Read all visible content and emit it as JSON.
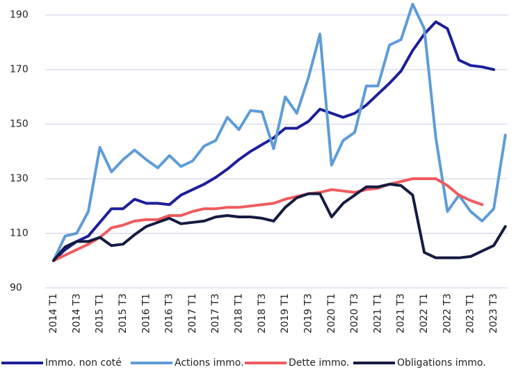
{
  "chart_data": {
    "type": "line",
    "categories": [
      "2014 T1",
      null,
      "2014 T3",
      null,
      "2015 T1",
      null,
      "2015 T3",
      null,
      "2016 T1",
      null,
      "2016 T3",
      null,
      "2017 T1",
      null,
      "2017 T3",
      null,
      "2018 T1",
      null,
      "2018 T3",
      null,
      "2019 T1",
      null,
      "2019 T3",
      null,
      "2020 T1",
      null,
      "2020 T3",
      null,
      "2021 T1",
      null,
      "2021 T3",
      null,
      "2022 T1",
      null,
      "2022 T3",
      null,
      "2023 T1",
      null,
      "2023 T3",
      null
    ],
    "series": [
      {
        "name": "Immo. non coté",
        "color": "#1c1f9a",
        "values": [
          100,
          104,
          107,
          109,
          114,
          119,
          119,
          122.5,
          121,
          121,
          120.5,
          124,
          126,
          128,
          130.5,
          133.5,
          137,
          140,
          142.5,
          145,
          148.5,
          148.5,
          151,
          155.5,
          154,
          152.5,
          154,
          157,
          161,
          165,
          169.5,
          177,
          183,
          187.5,
          185,
          173.5,
          171.5,
          171,
          170,
          null
        ]
      },
      {
        "name": "Actions immo.",
        "color": "#5e9cd8",
        "values": [
          100,
          109,
          110,
          118,
          141.5,
          132.5,
          137,
          140.5,
          137,
          134,
          138.5,
          134.5,
          136.5,
          142,
          144,
          152.5,
          148,
          155,
          154.5,
          141,
          160,
          154,
          167,
          183,
          135,
          144,
          147,
          164,
          164,
          179,
          181,
          194,
          185,
          145,
          118,
          124,
          118,
          114.5,
          119,
          146
        ]
      },
      {
        "name": "Dette immo.",
        "color": "#ef5b5e",
        "values": [
          100,
          102,
          104,
          106,
          108.5,
          112,
          113,
          114.5,
          115,
          115,
          116.5,
          116.5,
          118,
          119,
          119,
          119.5,
          119.5,
          120,
          120.5,
          121,
          122.5,
          123.5,
          124.5,
          125,
          126,
          125.5,
          125,
          126,
          126.5,
          128,
          129,
          130,
          130,
          130,
          127.5,
          124,
          122,
          120.5,
          null,
          null
        ]
      },
      {
        "name": "Obligations immo.",
        "color": "#151b40",
        "values": [
          100,
          105,
          107,
          107,
          108.5,
          105.5,
          106,
          109.5,
          112.5,
          114,
          115.5,
          113.5,
          114,
          114.5,
          116,
          116.5,
          116,
          116,
          115.5,
          114.5,
          119.5,
          123,
          124.5,
          124.5,
          116,
          121,
          124,
          127,
          127,
          128,
          127.5,
          124,
          103,
          101,
          101,
          101,
          101.5,
          103.5,
          105.5,
          112.5
        ]
      }
    ],
    "ylim": [
      90,
      195
    ],
    "yticks": [
      90,
      110,
      130,
      150,
      170,
      190
    ],
    "grid": true
  }
}
